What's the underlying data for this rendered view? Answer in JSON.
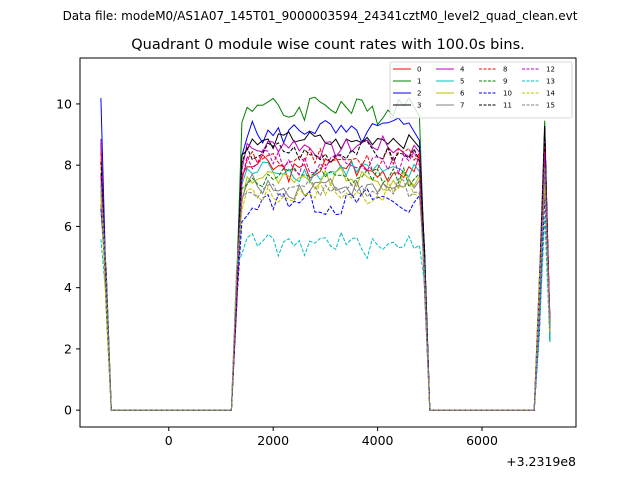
{
  "chart_data": {
    "type": "line",
    "suptitle": "Data file: modeM0/AS1A07_145T01_9000003594_24341cztM0_level2_quad_clean.evt",
    "title": "Quadrant 0 module wise count rates with 100.0s bins.",
    "xlabel": "",
    "ylabel": "",
    "x_offset_label": "+3.2319e8",
    "xlim": [
      -1700,
      7800
    ],
    "ylim": [
      -0.55,
      11.5
    ],
    "xticks": [
      0,
      2000,
      4000,
      6000
    ],
    "yticks": [
      0,
      2,
      4,
      6,
      8,
      10
    ],
    "grid": false,
    "legend_position": "top-right",
    "legend_columns": 4,
    "segments": [
      {
        "start": -1300,
        "ones": 2
      },
      {
        "start": -1100,
        "zeros": 24
      },
      {
        "start": 1300,
        "ones": 37
      },
      {
        "start": 5000,
        "zeros": 21
      },
      {
        "start": 7100,
        "ones": 3
      }
    ],
    "series": [
      {
        "name": "0",
        "color": "#ff0000",
        "dash": "solid",
        "base": 7.9,
        "amp": 0.35,
        "start": 7.0,
        "peak": 8.6
      },
      {
        "name": "1",
        "color": "#008000",
        "dash": "solid",
        "base": 9.9,
        "amp": 0.45,
        "start": 7.6,
        "peak": 9.3
      },
      {
        "name": "2",
        "color": "#0000ff",
        "dash": "solid",
        "base": 9.1,
        "amp": 0.35,
        "start": 9.8,
        "peak": 9.5
      },
      {
        "name": "3",
        "color": "#000000",
        "dash": "solid",
        "base": 8.8,
        "amp": 0.25,
        "start": 8.5,
        "peak": 9.1
      },
      {
        "name": "4",
        "color": "#bf00bf",
        "dash": "solid",
        "base": 8.6,
        "amp": 0.3,
        "start": 8.8,
        "peak": 9.0
      },
      {
        "name": "5",
        "color": "#00bfbf",
        "dash": "solid",
        "base": 7.8,
        "amp": 0.3,
        "start": 7.4,
        "peak": 8.2
      },
      {
        "name": "6",
        "color": "#bfbf00",
        "dash": "solid",
        "base": 7.5,
        "amp": 0.3,
        "start": 7.2,
        "peak": 7.9
      },
      {
        "name": "7",
        "color": "#808080",
        "dash": "solid",
        "base": 7.3,
        "amp": 0.3,
        "start": 7.0,
        "peak": 7.6
      },
      {
        "name": "8",
        "color": "#ff0000",
        "dash": "dashed",
        "base": 8.2,
        "amp": 0.35,
        "start": 8.0,
        "peak": 8.8
      },
      {
        "name": "9",
        "color": "#008000",
        "dash": "dashed",
        "base": 7.6,
        "amp": 0.3,
        "start": 7.5,
        "peak": 8.0
      },
      {
        "name": "10",
        "color": "#0000ff",
        "dash": "dashed",
        "base": 6.8,
        "amp": 0.35,
        "start": 6.5,
        "peak": 7.2
      },
      {
        "name": "11",
        "color": "#000000",
        "dash": "dashed",
        "base": 8.4,
        "amp": 0.3,
        "start": 8.2,
        "peak": 8.9
      },
      {
        "name": "12",
        "color": "#bf00bf",
        "dash": "dashed",
        "base": 8.1,
        "amp": 0.3,
        "start": 7.9,
        "peak": 8.5
      },
      {
        "name": "13",
        "color": "#00bfbf",
        "dash": "dashed",
        "base": 5.4,
        "amp": 0.35,
        "start": 6.0,
        "peak": 6.0
      },
      {
        "name": "14",
        "color": "#bfbf00",
        "dash": "dashed",
        "base": 7.1,
        "amp": 0.3,
        "start": 6.9,
        "peak": 7.4
      },
      {
        "name": "15",
        "color": "#808080",
        "dash": "dashed",
        "base": 7.2,
        "amp": 0.3,
        "start": 7.1,
        "peak": 7.6
      }
    ]
  }
}
